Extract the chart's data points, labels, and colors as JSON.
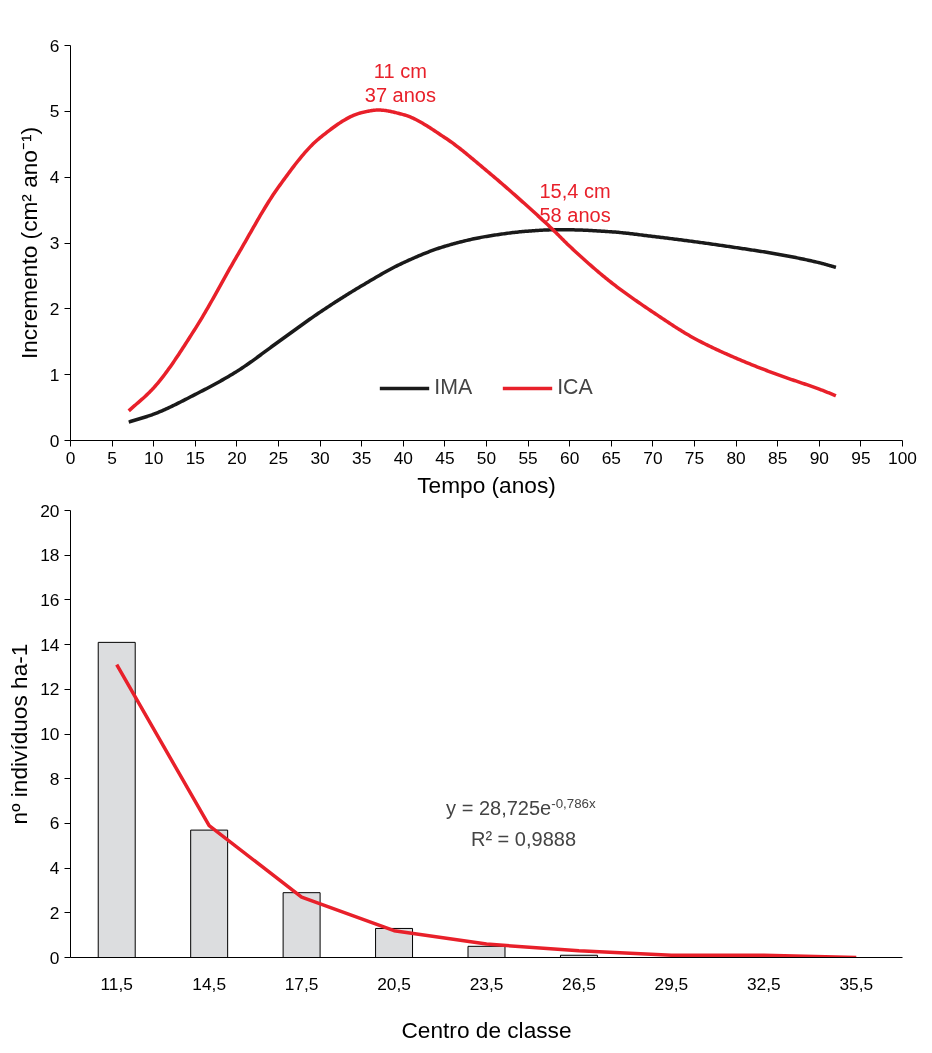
{
  "chart_data": [
    {
      "type": "line",
      "xlabel": "Tempo (anos)",
      "ylabel": "Incremento (cm² ano⁻¹)",
      "xlim": [
        0,
        100
      ],
      "xticks": [
        0,
        5,
        10,
        15,
        20,
        25,
        30,
        35,
        40,
        45,
        50,
        55,
        60,
        65,
        70,
        75,
        80,
        85,
        90,
        95,
        100
      ],
      "ylim": [
        0,
        6
      ],
      "yticks": [
        0,
        1,
        2,
        3,
        4,
        5,
        6
      ],
      "grid": false,
      "legend": "bottom",
      "series": [
        {
          "name": "IMA",
          "color": "#1a1a1a",
          "x": [
            7,
            10,
            15,
            20,
            25,
            30,
            35,
            40,
            45,
            50,
            55,
            58,
            60,
            65,
            70,
            75,
            80,
            85,
            90,
            92
          ],
          "values": [
            0.28,
            0.4,
            0.7,
            1.05,
            1.5,
            1.95,
            2.35,
            2.7,
            2.95,
            3.1,
            3.18,
            3.2,
            3.2,
            3.17,
            3.1,
            3.02,
            2.93,
            2.83,
            2.7,
            2.63
          ]
        },
        {
          "name": "ICA",
          "color": "#e8202a",
          "x": [
            7,
            10,
            15,
            20,
            25,
            30,
            35,
            37,
            40,
            45,
            50,
            55,
            58,
            60,
            65,
            70,
            75,
            80,
            85,
            90,
            92
          ],
          "values": [
            0.45,
            0.8,
            1.7,
            2.8,
            3.85,
            4.6,
            4.98,
            5.02,
            4.95,
            4.6,
            4.1,
            3.55,
            3.2,
            2.95,
            2.4,
            1.95,
            1.55,
            1.25,
            1.0,
            0.78,
            0.68
          ]
        }
      ],
      "annotations": [
        {
          "text": "11 cm\n37 anos",
          "x": 37,
          "y": 5.02
        },
        {
          "text": "15,4 cm\n58 anos",
          "x": 58,
          "y": 3.2
        }
      ]
    },
    {
      "type": "bar",
      "xlabel": "Centro de classe",
      "ylabel": "nº indivíduos ha-1",
      "ylim": [
        0,
        20
      ],
      "yticks": [
        0,
        2,
        4,
        6,
        8,
        10,
        12,
        14,
        16,
        18,
        20
      ],
      "grid": false,
      "categories": [
        "11,5",
        "14,5",
        "17,5",
        "20,5",
        "23,5",
        "26,5",
        "29,5",
        "32,5",
        "35,5"
      ],
      "series": [
        {
          "type": "bar",
          "color": "#dcdddf",
          "values": [
            14.1,
            5.7,
            2.9,
            1.3,
            0.5,
            0.1,
            null,
            null,
            null
          ]
        },
        {
          "type": "line",
          "color": "#e8202a",
          "x": [
            "11,5",
            "14,5",
            "17,5",
            "20,5",
            "23,5",
            "26,5",
            "29,5",
            "32,5",
            "35,5"
          ],
          "values": [
            13.1,
            5.9,
            2.7,
            1.2,
            0.6,
            0.3,
            0.1,
            0.1,
            0.0
          ]
        }
      ],
      "annotations": [
        "y = 28,725e$^{-0,786x}$",
        "R² = 0,9888"
      ]
    }
  ]
}
